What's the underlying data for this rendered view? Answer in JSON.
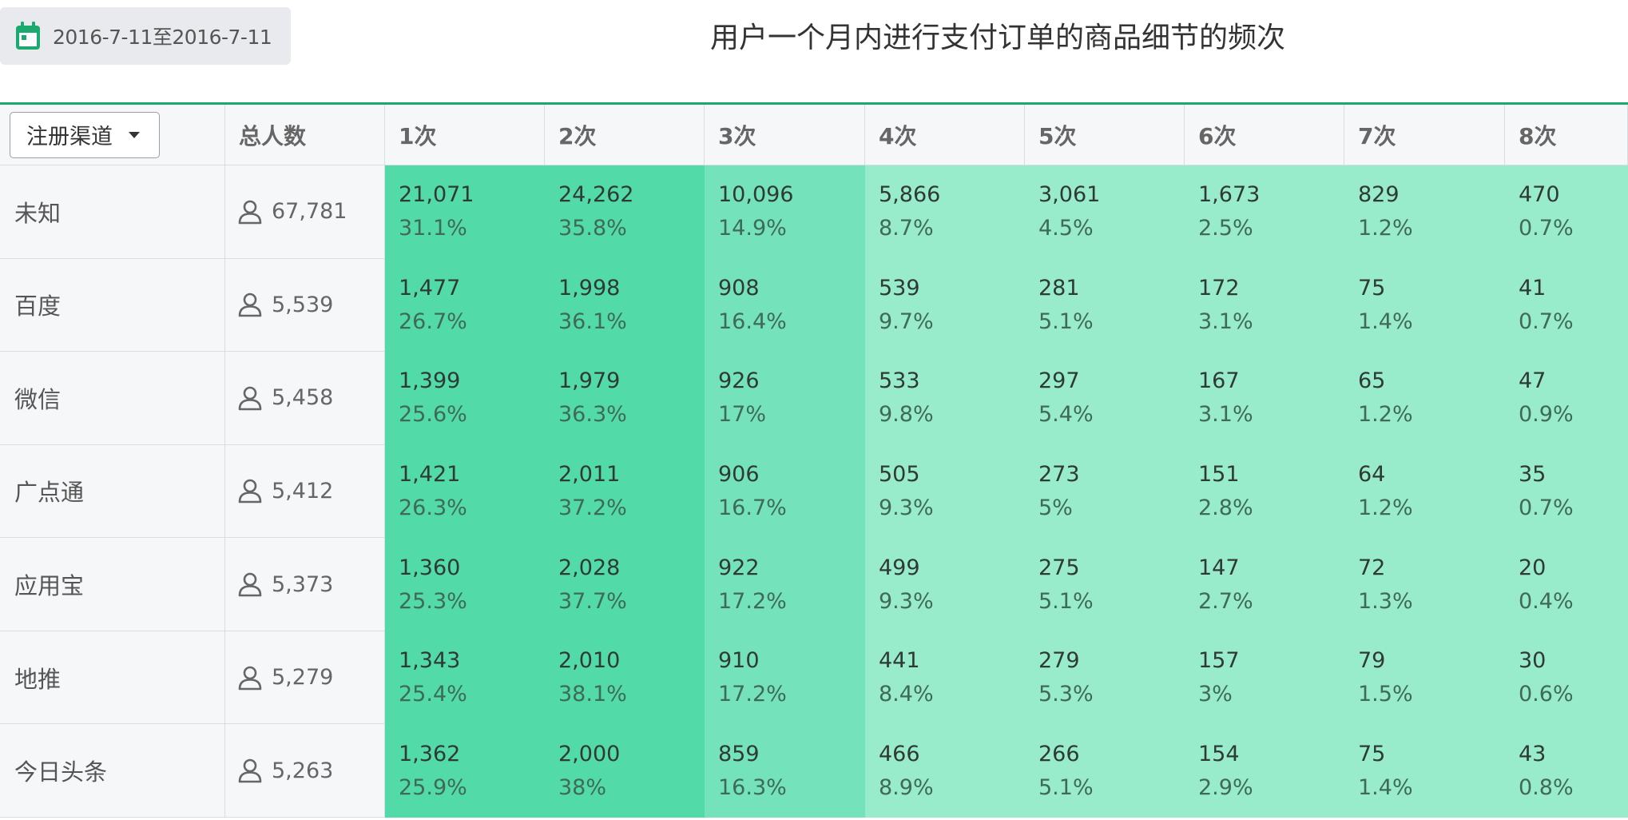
{
  "date_range": {
    "label": "2016-7-11至2016-7-11",
    "icon": "calendar-icon",
    "icon_color": "#1aaa70"
  },
  "title": "用户一个月内进行支付订单的商品细节的频次",
  "colors": {
    "accent": "#1aaa70",
    "heat_high": "#52dba9",
    "heat_mid": "#74e3bb",
    "heat_low": "#98ebcb"
  },
  "chart_data": {
    "type": "table",
    "title": "用户一个月内进行支付订单的商品细节的频次",
    "group_selector": "注册渠道",
    "total_header": "总人数",
    "columns": [
      "1次",
      "2次",
      "3次",
      "4次",
      "5次",
      "6次",
      "7次",
      "8次"
    ],
    "rows": [
      {
        "channel": "未知",
        "total": "67,781",
        "counts": [
          "21,071",
          "24,262",
          "10,096",
          "5,866",
          "3,061",
          "1,673",
          "829",
          "470"
        ],
        "percents": [
          "31.1%",
          "35.8%",
          "14.9%",
          "8.7%",
          "4.5%",
          "2.5%",
          "1.2%",
          "0.7%"
        ]
      },
      {
        "channel": "百度",
        "total": "5,539",
        "counts": [
          "1,477",
          "1,998",
          "908",
          "539",
          "281",
          "172",
          "75",
          "41"
        ],
        "percents": [
          "26.7%",
          "36.1%",
          "16.4%",
          "9.7%",
          "5.1%",
          "3.1%",
          "1.4%",
          "0.7%"
        ]
      },
      {
        "channel": "微信",
        "total": "5,458",
        "counts": [
          "1,399",
          "1,979",
          "926",
          "533",
          "297",
          "167",
          "65",
          "47"
        ],
        "percents": [
          "25.6%",
          "36.3%",
          "17%",
          "9.8%",
          "5.4%",
          "3.1%",
          "1.2%",
          "0.9%"
        ]
      },
      {
        "channel": "广点通",
        "total": "5,412",
        "counts": [
          "1,421",
          "2,011",
          "906",
          "505",
          "273",
          "151",
          "64",
          "35"
        ],
        "percents": [
          "26.3%",
          "37.2%",
          "16.7%",
          "9.3%",
          "5%",
          "2.8%",
          "1.2%",
          "0.7%"
        ]
      },
      {
        "channel": "应用宝",
        "total": "5,373",
        "counts": [
          "1,360",
          "2,028",
          "922",
          "499",
          "275",
          "147",
          "72",
          "20"
        ],
        "percents": [
          "25.3%",
          "37.7%",
          "17.2%",
          "9.3%",
          "5.1%",
          "2.7%",
          "1.3%",
          "0.4%"
        ]
      },
      {
        "channel": "地推",
        "total": "5,279",
        "counts": [
          "1,343",
          "2,010",
          "910",
          "441",
          "279",
          "157",
          "79",
          "30"
        ],
        "percents": [
          "25.4%",
          "38.1%",
          "17.2%",
          "8.4%",
          "5.3%",
          "3%",
          "1.5%",
          "0.6%"
        ]
      },
      {
        "channel": "今日头条",
        "total": "5,263",
        "counts": [
          "1,362",
          "2,000",
          "859",
          "466",
          "266",
          "154",
          "75",
          "43"
        ],
        "percents": [
          "25.9%",
          "38%",
          "16.3%",
          "8.9%",
          "5.1%",
          "2.9%",
          "1.4%",
          "0.8%"
        ]
      }
    ]
  }
}
